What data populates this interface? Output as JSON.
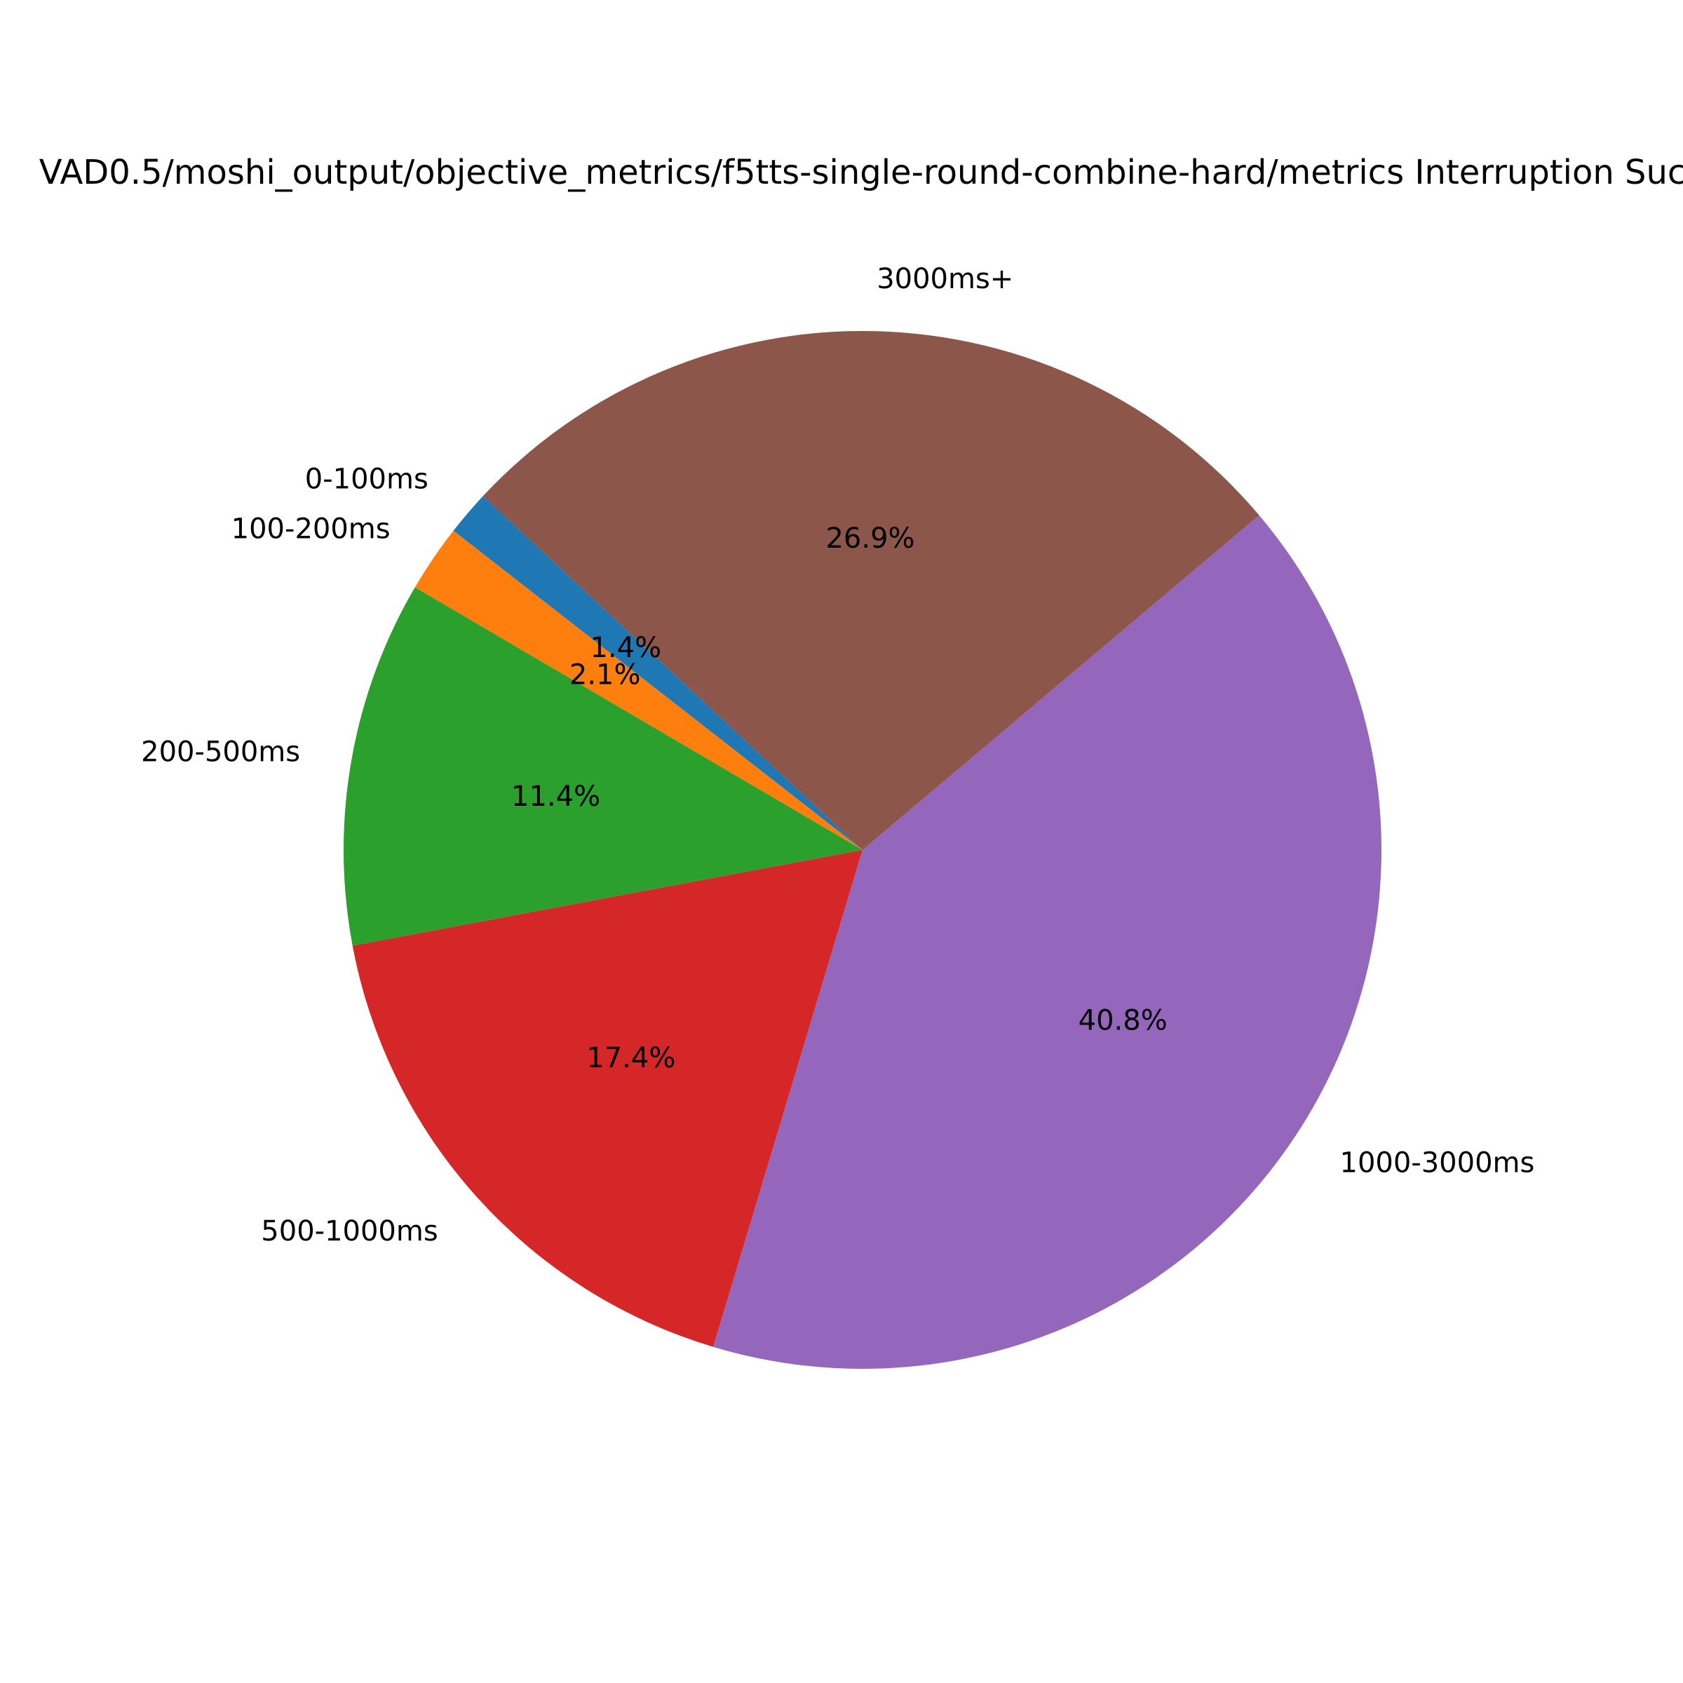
{
  "chart_data": {
    "type": "pie",
    "title": "VAD0.5/moshi_output/objective_metrics/f5tts-single-round-combine-hard/metrics Interruption Suc",
    "slices": [
      {
        "label": "0-100ms",
        "value": 1.4,
        "pct_label": "1.4%",
        "color": "#1f77b4"
      },
      {
        "label": "100-200ms",
        "value": 2.1,
        "pct_label": "2.1%",
        "color": "#ff7f0e"
      },
      {
        "label": "200-500ms",
        "value": 11.4,
        "pct_label": "11.4%",
        "color": "#2ca02c"
      },
      {
        "label": "500-1000ms",
        "value": 17.4,
        "pct_label": "17.4%",
        "color": "#d62728"
      },
      {
        "label": "1000-3000ms",
        "value": 40.8,
        "pct_label": "40.8%",
        "color": "#9467bd"
      },
      {
        "label": "3000ms+",
        "value": 26.9,
        "pct_label": "26.9%",
        "color": "#8c564b"
      }
    ]
  }
}
